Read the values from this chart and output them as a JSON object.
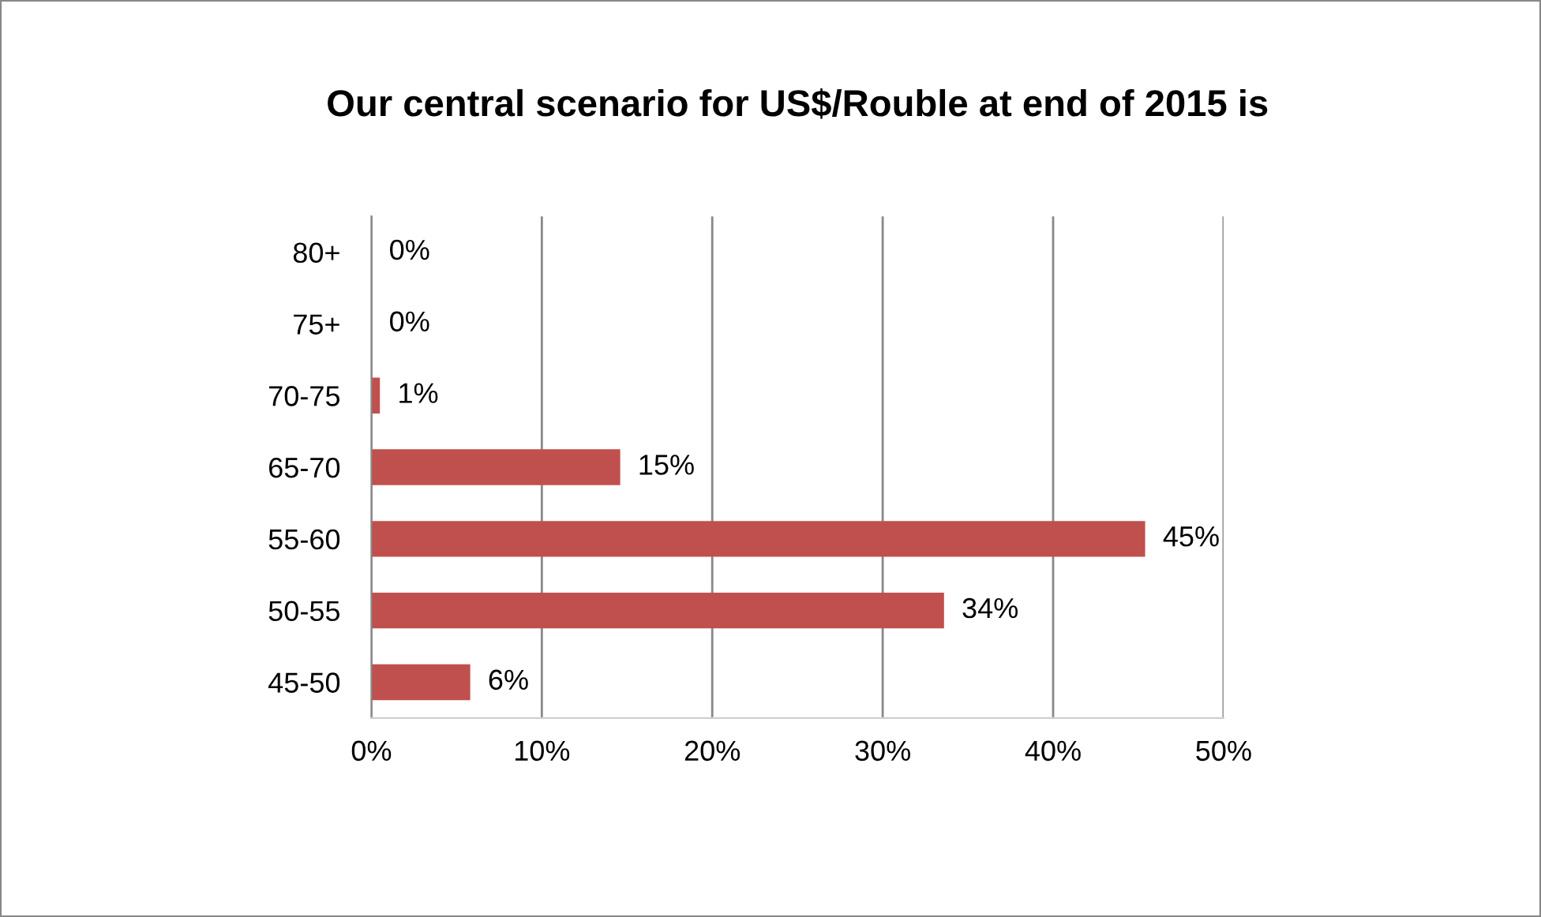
{
  "chart_data": {
    "type": "bar",
    "orientation": "horizontal",
    "title": "Our central scenario for US$/Rouble at end of 2015 is",
    "categories": [
      "80+",
      "75+",
      "70-75",
      "65-70",
      "55-60",
      "50-55",
      "45-50"
    ],
    "values": [
      0,
      0,
      0.5,
      14.6,
      45.4,
      33.6,
      5.8
    ],
    "value_labels": [
      "0%",
      "0%",
      "1%",
      "15%",
      "45%",
      "34%",
      "6%"
    ],
    "color": "#c0504d",
    "xlim": [
      0,
      50
    ],
    "xticks": [
      {
        "value": 0,
        "label": "0%"
      },
      {
        "value": 10,
        "label": "10%"
      },
      {
        "value": 20,
        "label": "20%"
      },
      {
        "value": 30,
        "label": "30%"
      },
      {
        "value": 40,
        "label": "40%"
      },
      {
        "value": 50,
        "label": "50%"
      }
    ],
    "grid": "x"
  }
}
